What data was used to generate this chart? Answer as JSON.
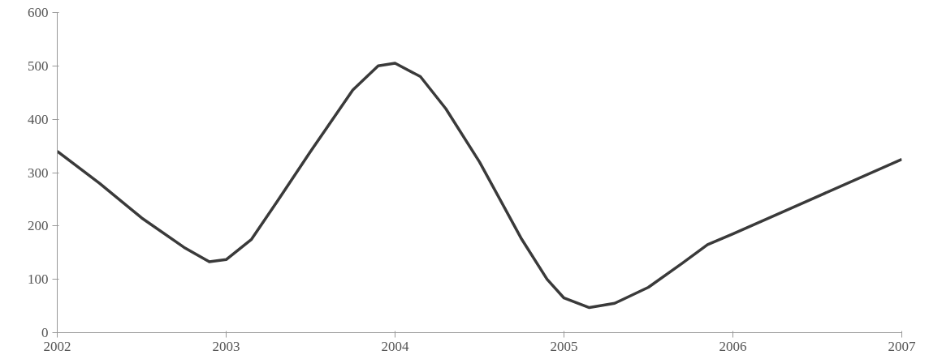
{
  "chart_data": {
    "type": "line",
    "x": [
      2002,
      2002.25,
      2002.5,
      2002.75,
      2002.9,
      2003,
      2003.15,
      2003.3,
      2003.5,
      2003.75,
      2003.9,
      2004,
      2004.15,
      2004.3,
      2004.5,
      2004.75,
      2004.9,
      2005,
      2005.15,
      2005.3,
      2005.5,
      2005.7,
      2005.85,
      2006,
      2006.5,
      2007
    ],
    "series": [
      {
        "color": "#3a3a3a",
        "values": [
          340,
          280,
          215,
          160,
          133,
          137,
          175,
          245,
          340,
          455,
          500,
          505,
          480,
          420,
          320,
          175,
          100,
          65,
          47,
          55,
          85,
          130,
          165,
          185,
          255,
          325
        ]
      }
    ],
    "xlim": [
      2002,
      2007
    ],
    "xticks": [
      2002,
      2003,
      2004,
      2005,
      2006,
      2007
    ],
    "ylim": [
      0,
      600
    ],
    "yticks": [
      0,
      100,
      200,
      300,
      400,
      500,
      600
    ],
    "marker": "none",
    "line_style": "solid"
  }
}
